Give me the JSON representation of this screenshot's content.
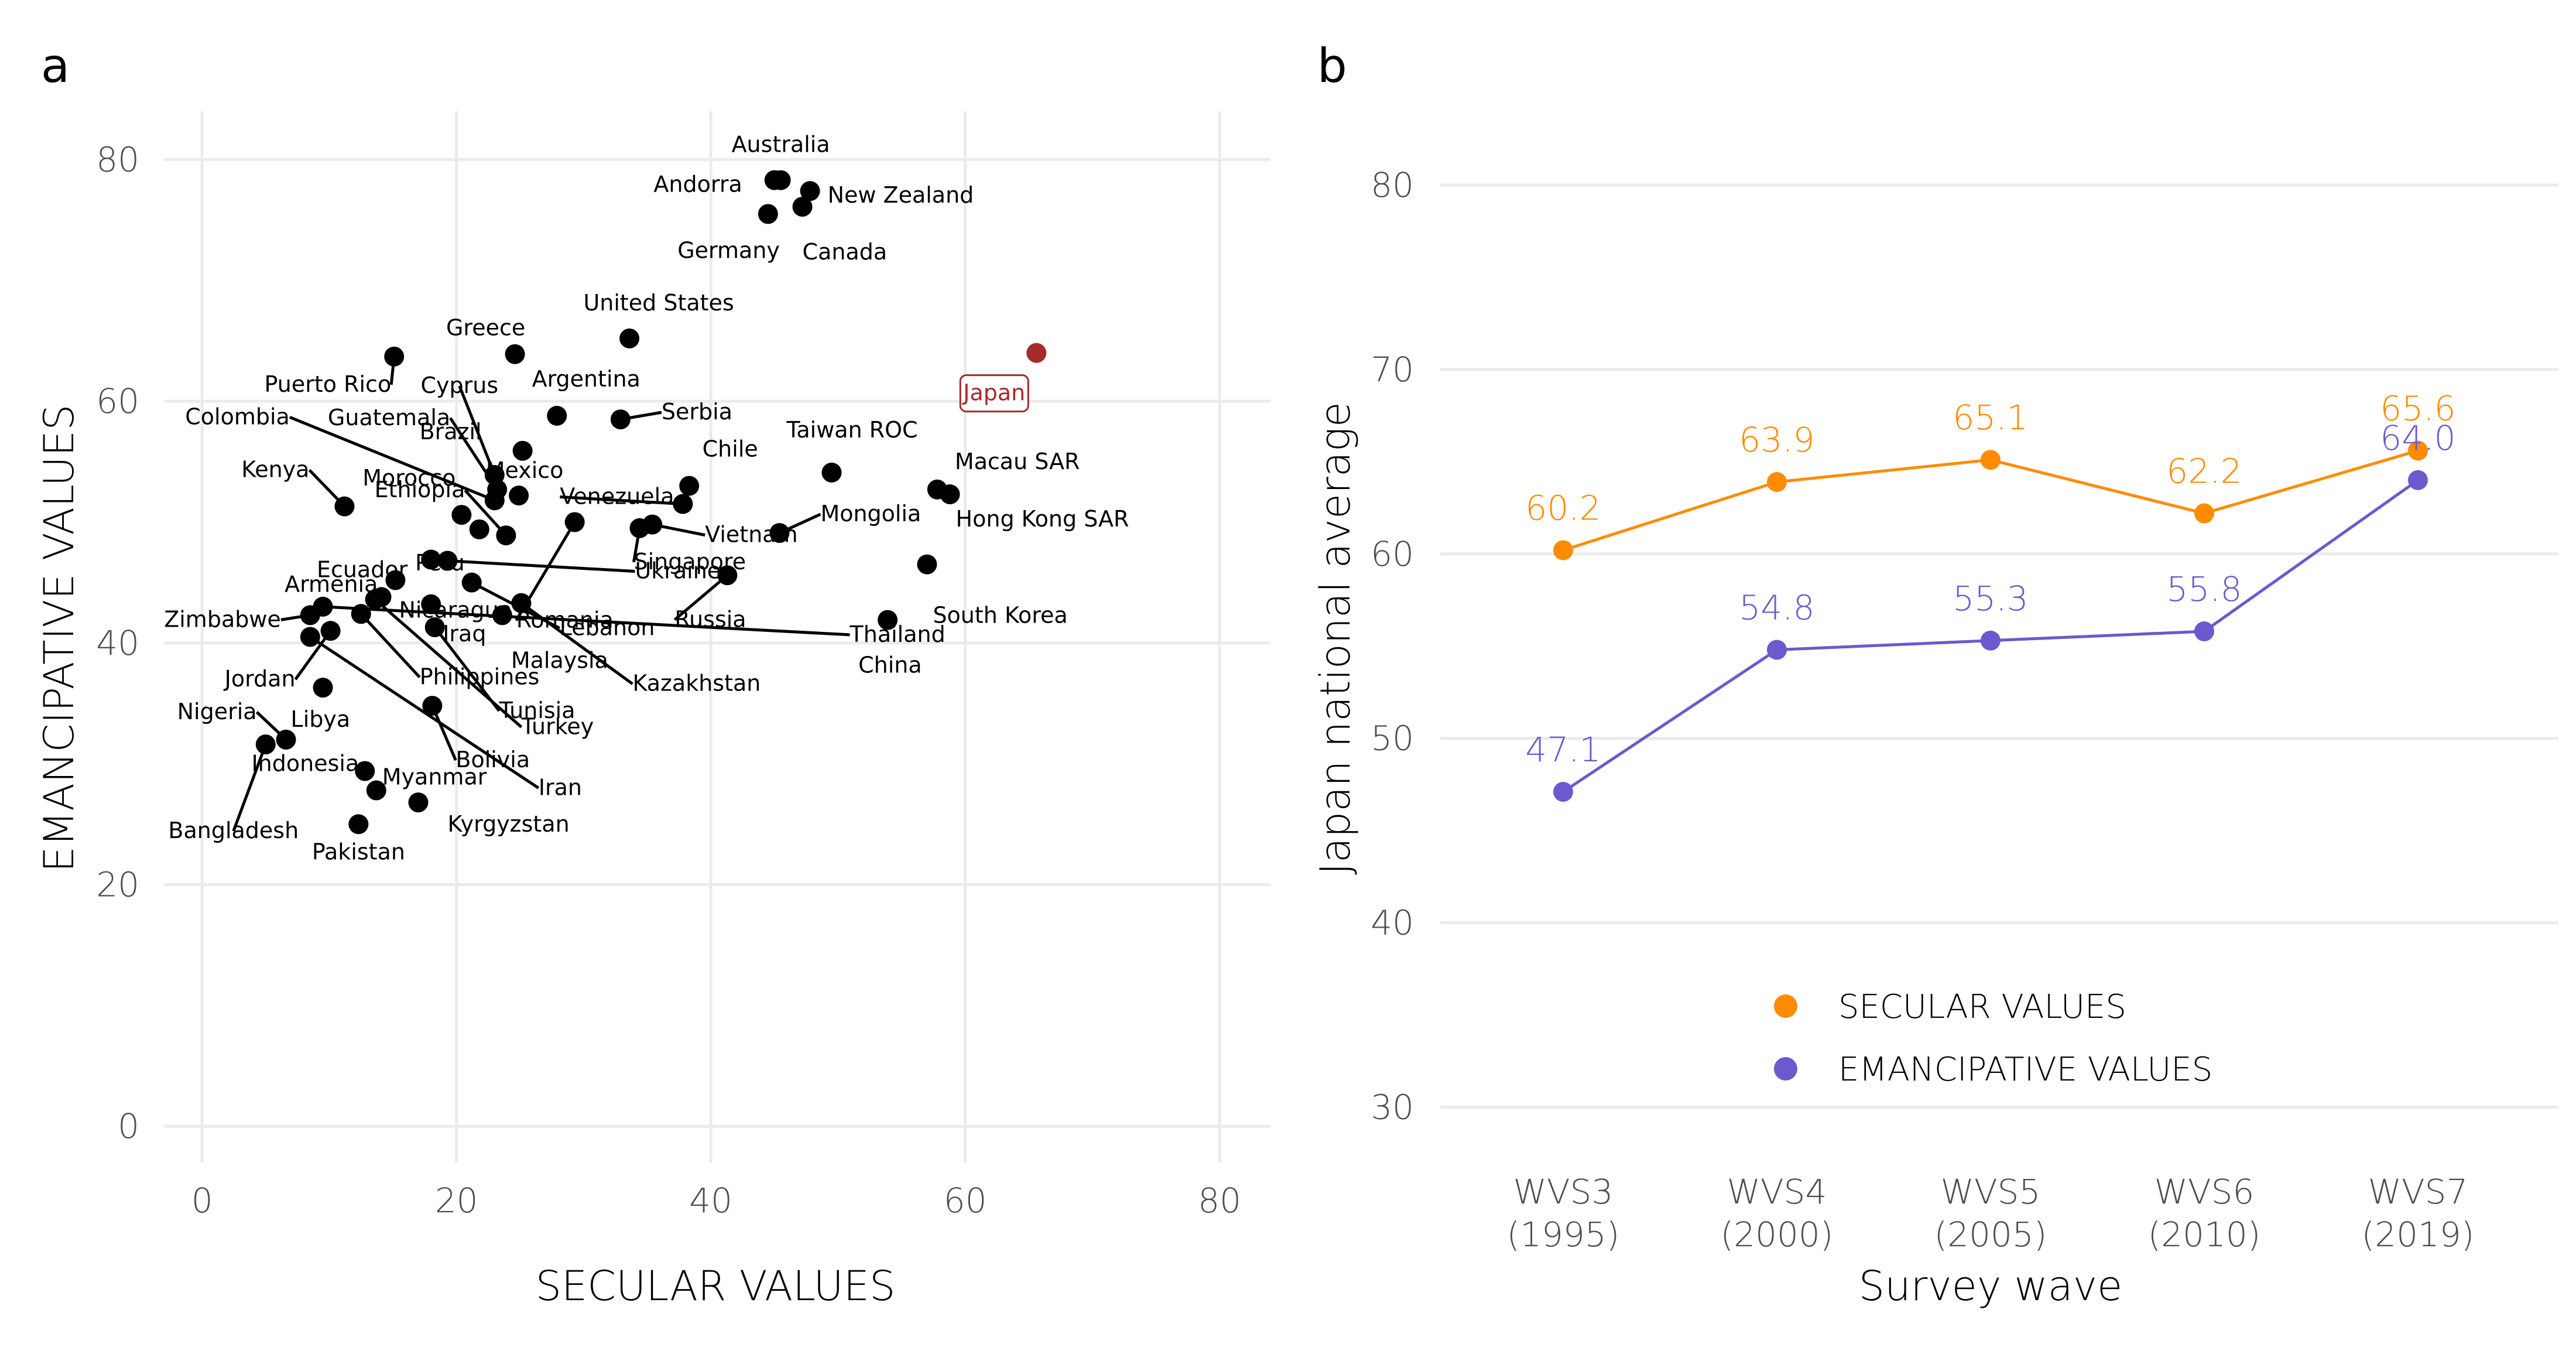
{
  "panels": {
    "a": {
      "letter": "a"
    },
    "b": {
      "letter": "b"
    }
  },
  "chart_data": [
    {
      "type": "scatter",
      "xlabel": "SECULAR VALUES",
      "ylabel": "EMANCIPATIVE VALUES",
      "xlim": [
        -3,
        84
      ],
      "ylim": [
        -3,
        84
      ],
      "x_ticks": [
        "0",
        "20",
        "40",
        "60",
        "80"
      ],
      "y_ticks": [
        "0",
        "20",
        "40",
        "60",
        "80"
      ],
      "grid": true,
      "highlight_color": "#a52a2a",
      "points": [
        {
          "label": "Australia",
          "x": 45.5,
          "y": 78.3
        },
        {
          "label": "Andorra",
          "x": 45.0,
          "y": 78.3
        },
        {
          "label": "New Zealand",
          "x": 47.8,
          "y": 77.4
        },
        {
          "label": "Germany",
          "x": 44.5,
          "y": 75.5
        },
        {
          "label": "Canada",
          "x": 47.2,
          "y": 76.1
        },
        {
          "label": "United States",
          "x": 33.6,
          "y": 65.2
        },
        {
          "label": "Greece",
          "x": 24.6,
          "y": 63.9
        },
        {
          "label": "Puerto Rico",
          "x": 15.1,
          "y": 63.7
        },
        {
          "label": "Argentina",
          "x": 27.9,
          "y": 58.8
        },
        {
          "label": "Serbia",
          "x": 32.9,
          "y": 58.5
        },
        {
          "label": "Brazil",
          "x": 25.2,
          "y": 55.9
        },
        {
          "label": "Cyprus",
          "x": 23.0,
          "y": 53.9
        },
        {
          "label": "Guatemala",
          "x": 23.2,
          "y": 52.7
        },
        {
          "label": "Mexico",
          "x": 24.9,
          "y": 52.2
        },
        {
          "label": "Colombia",
          "x": 23.0,
          "y": 51.8
        },
        {
          "label": "Chile",
          "x": 38.3,
          "y": 53.0
        },
        {
          "label": "Taiwan ROC",
          "x": 49.5,
          "y": 54.1
        },
        {
          "label": "Macau SAR",
          "x": 57.8,
          "y": 52.7
        },
        {
          "label": "Hong Kong SAR",
          "x": 58.8,
          "y": 52.3
        },
        {
          "label": "Venezuela",
          "x": 37.8,
          "y": 51.5
        },
        {
          "label": "Kenya",
          "x": 11.2,
          "y": 51.3
        },
        {
          "label": "Morocco",
          "x": 20.4,
          "y": 50.6
        },
        {
          "label": "Vietnam",
          "x": 35.4,
          "y": 49.8
        },
        {
          "label": "Singapore",
          "x": 34.4,
          "y": 49.5
        },
        {
          "label": "Mongolia",
          "x": 45.4,
          "y": 49.1
        },
        {
          "label": "Peru",
          "x": 21.8,
          "y": 49.4
        },
        {
          "label": "Romania",
          "x": 29.3,
          "y": 50.0
        },
        {
          "label": "Ethiopia",
          "x": 23.9,
          "y": 48.9
        },
        {
          "label": "Ecuador",
          "x": 18.0,
          "y": 46.9
        },
        {
          "label": "Ukraine",
          "x": 19.3,
          "y": 46.8
        },
        {
          "label": "South Korea",
          "x": 57.0,
          "y": 46.5
        },
        {
          "label": "Russia",
          "x": 41.3,
          "y": 45.6
        },
        {
          "label": "Armenia",
          "x": 15.2,
          "y": 45.2
        },
        {
          "label": "Lebanon",
          "x": 21.2,
          "y": 45.0
        },
        {
          "label": "Thailand",
          "x": 9.5,
          "y": 43.0
        },
        {
          "label": "Nicaragua",
          "x": 14.1,
          "y": 43.8
        },
        {
          "label": "Kazakhstan",
          "x": 25.1,
          "y": 43.3
        },
        {
          "label": "Iraq",
          "x": 18.0,
          "y": 43.2
        },
        {
          "label": "Zimbabwe",
          "x": 8.5,
          "y": 42.3
        },
        {
          "label": "Malaysia",
          "x": 23.6,
          "y": 42.3
        },
        {
          "label": "Philippines",
          "x": 12.5,
          "y": 42.4
        },
        {
          "label": "China",
          "x": 53.9,
          "y": 41.9
        },
        {
          "label": "Jordan",
          "x": 10.1,
          "y": 41.0
        },
        {
          "label": "Tunisia",
          "x": 18.3,
          "y": 41.3
        },
        {
          "label": "Turkey",
          "x": 13.6,
          "y": 43.6
        },
        {
          "label": "Libya",
          "x": 9.5,
          "y": 36.3
        },
        {
          "label": "Bolivia",
          "x": 18.1,
          "y": 34.8
        },
        {
          "label": "Nigeria",
          "x": 6.6,
          "y": 32.0
        },
        {
          "label": "Bangladesh",
          "x": 5.0,
          "y": 31.6
        },
        {
          "label": "Indonesia",
          "x": 12.8,
          "y": 29.4
        },
        {
          "label": "Myanmar",
          "x": 13.7,
          "y": 27.8
        },
        {
          "label": "Iran",
          "x": 8.5,
          "y": 40.5
        },
        {
          "label": "Kyrgyzstan",
          "x": 17.0,
          "y": 26.8
        },
        {
          "label": "Pakistan",
          "x": 12.3,
          "y": 25.0
        },
        {
          "label": "Japan",
          "x": 65.6,
          "y": 64.0,
          "highlight": true
        }
      ]
    },
    {
      "type": "line",
      "xlabel": "Survey wave",
      "ylabel": "Japan national average",
      "ylim": [
        27,
        84
      ],
      "y_ticks": [
        "30",
        "40",
        "50",
        "60",
        "70",
        "80"
      ],
      "categories": [
        {
          "line1": "WVS3",
          "line2": "(1995)"
        },
        {
          "line1": "WVS4",
          "line2": "(2000)"
        },
        {
          "line1": "WVS5",
          "line2": "(2005)"
        },
        {
          "line1": "WVS6",
          "line2": "(2010)"
        },
        {
          "line1": "WVS7",
          "line2": "(2019)"
        }
      ],
      "grid": true,
      "legend_position": "bottom-center",
      "series": [
        {
          "name": "SECULAR VALUES",
          "color": "#ff8c00",
          "values": [
            60.2,
            63.9,
            65.1,
            62.2,
            65.6
          ],
          "labels": [
            "60.2",
            "63.9",
            "65.1",
            "62.2",
            "65.6"
          ]
        },
        {
          "name": "EMANCIPATIVE VALUES",
          "color": "#6a5acd",
          "values": [
            47.1,
            54.8,
            55.3,
            55.8,
            64.0
          ],
          "labels": [
            "47.1",
            "54.8",
            "55.3",
            "55.8",
            "64.0"
          ]
        }
      ]
    }
  ]
}
